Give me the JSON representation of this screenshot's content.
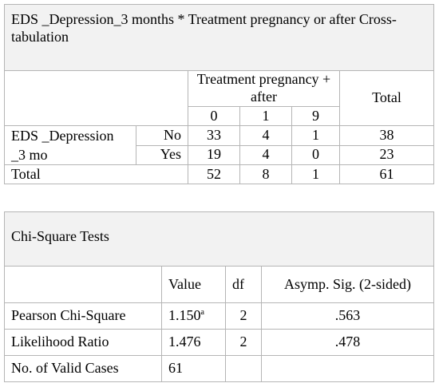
{
  "crosstab": {
    "title": "EDS _Depression_3 months * Treatment pregnancy or after Cross-tabulation",
    "group_header": "Treatment pregnancy + after",
    "total_header": "Total",
    "columns": [
      "0",
      "1",
      "9"
    ],
    "row_variable": "EDS _Depression _3 mo",
    "rows": [
      {
        "label": "No",
        "values": [
          "33",
          "4",
          "1"
        ],
        "total": "38"
      },
      {
        "label": "Yes",
        "values": [
          "19",
          "4",
          "0"
        ],
        "total": "23"
      }
    ],
    "total_row": {
      "label": "Total",
      "values": [
        "52",
        "8",
        "1"
      ],
      "total": "61"
    }
  },
  "chisq": {
    "title": "Chi-Square Tests",
    "headers": [
      "Value",
      "df",
      "Asymp. Sig. (2-sided)"
    ],
    "rows": [
      {
        "label": "Pearson Chi-Square",
        "value": "1.150",
        "sup": "a",
        "df": "2",
        "sig": ".563"
      },
      {
        "label": "Likelihood Ratio",
        "value": "1.476",
        "sup": "",
        "df": "2",
        "sig": ".478"
      },
      {
        "label": "No. of Valid Cases",
        "value": "61",
        "sup": "",
        "df": "",
        "sig": ""
      }
    ]
  }
}
